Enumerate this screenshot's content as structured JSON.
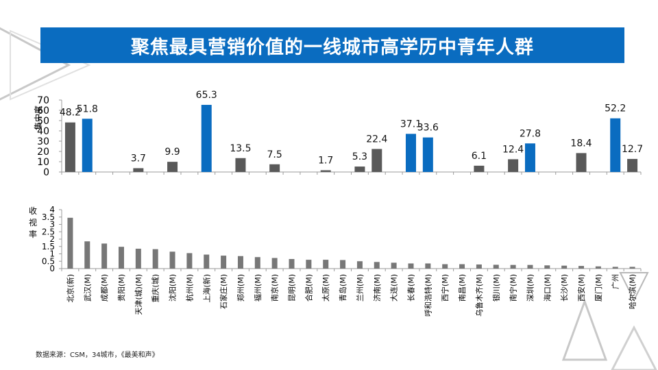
{
  "title": "聚焦最具营销价值的一线城市高学历中青年人群",
  "source": "数据来源：CSM，34城市，《最美和声》",
  "colors": {
    "banner": "#0a6cc0",
    "gray_bar": "#595959",
    "blue_bar": "#0a6cc0",
    "light_gray_bar": "#777777"
  },
  "chart_data": [
    {
      "type": "bar",
      "ylabel": "集中度",
      "ylim": [
        0,
        70
      ],
      "yticks": [
        0,
        10,
        20,
        30,
        40,
        50,
        60,
        70
      ],
      "categories": [
        "北京(新)",
        "武汉",
        "成都(M)",
        "贵阳(M)",
        "天津(城)(M)",
        "重庆(城)",
        "沈阳(M)",
        "杭州(M)",
        "上海(新)",
        "石家庄(M)",
        "郑州(M)",
        "福州(M)",
        "南京(M)",
        "昆明(M)",
        "合肥(M)",
        "太原(M)",
        "青岛(M)",
        "兰州(M)",
        "济南(M)",
        "大连(M)",
        "长春(M)",
        "呼和浩特(M)",
        "西宁(M)",
        "南昌(M)",
        "乌鲁木齐(M)",
        "银川(M)",
        "南宁(M)",
        "深圳(M)",
        "海口(M)",
        "长沙(M)",
        "西安(M)",
        "厦门(M)",
        "广州",
        "哈尔滨(M)"
      ],
      "values": [
        48.2,
        51.8,
        null,
        null,
        3.7,
        null,
        9.9,
        null,
        65.3,
        null,
        13.5,
        null,
        7.5,
        null,
        null,
        1.7,
        null,
        5.3,
        22.4,
        null,
        37.1,
        33.6,
        null,
        null,
        6.1,
        null,
        12.4,
        27.8,
        null,
        null,
        18.4,
        null,
        52.2,
        12.7
      ],
      "highlight": [
        false,
        true,
        false,
        false,
        false,
        false,
        false,
        false,
        true,
        false,
        false,
        false,
        false,
        false,
        false,
        false,
        false,
        false,
        false,
        false,
        true,
        true,
        false,
        false,
        false,
        false,
        false,
        true,
        false,
        false,
        false,
        false,
        true,
        false
      ],
      "grid": false
    },
    {
      "type": "bar",
      "ylabel": "收视率",
      "ylim": [
        0,
        4
      ],
      "yticks": [
        0,
        0.5,
        1,
        1.5,
        2,
        2.5,
        3,
        3.5,
        4
      ],
      "categories": [
        "北京(新)",
        "武汉(M)",
        "成都(M)",
        "贵阳(M)",
        "天津(城)(M)",
        "重庆(城)",
        "沈阳(M)",
        "杭州(M)",
        "上海(新)",
        "石家庄(M)",
        "郑州(M)",
        "福州(M)",
        "南京(M)",
        "昆明(M)",
        "合肥(M)",
        "太原(M)",
        "青岛(M)",
        "兰州(M)",
        "济南(M)",
        "大连(M)",
        "长春(M)",
        "呼和浩特(M)",
        "西宁(M)",
        "南昌(M)",
        "乌鲁木齐(M)",
        "银川(M)",
        "南宁(M)",
        "深圳(M)",
        "海口(M)",
        "长沙(M)",
        "西安(M)",
        "厦门(M)",
        "广州",
        "哈尔滨(M)"
      ],
      "values": [
        3.45,
        1.85,
        1.7,
        1.48,
        1.35,
        1.32,
        1.15,
        1.05,
        0.95,
        0.88,
        0.85,
        0.78,
        0.72,
        0.65,
        0.6,
        0.6,
        0.58,
        0.5,
        0.45,
        0.4,
        0.35,
        0.35,
        0.3,
        0.3,
        0.28,
        0.26,
        0.25,
        0.25,
        0.22,
        0.2,
        0.18,
        0.15,
        0.12,
        0.12
      ],
      "grid": false
    }
  ]
}
